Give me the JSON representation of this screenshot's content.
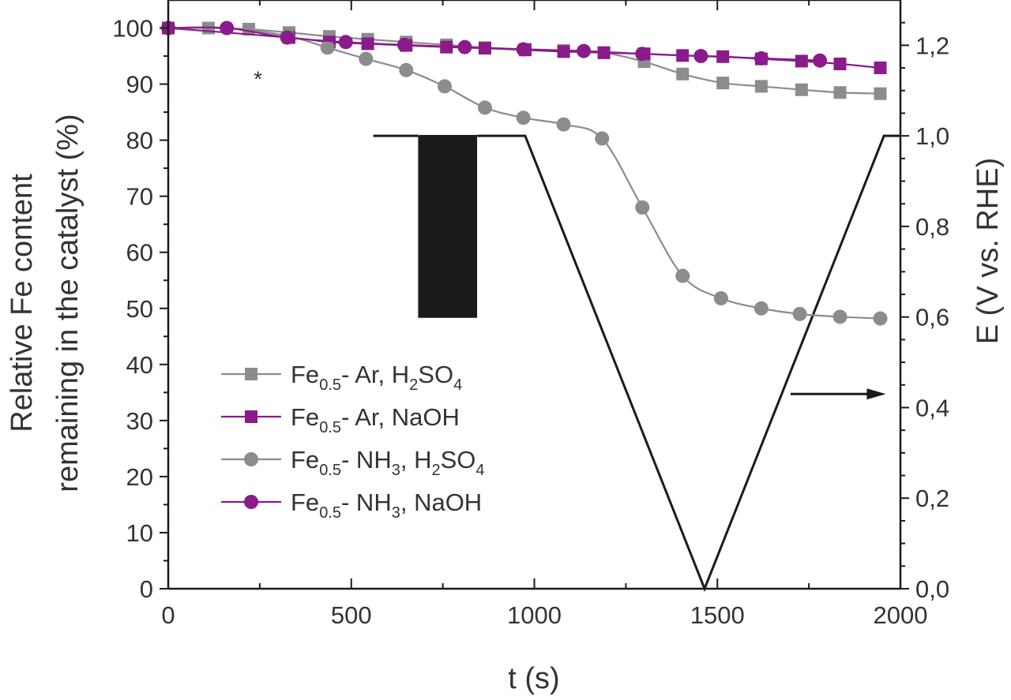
{
  "chart_data": {
    "type": "line",
    "xlabel": "t (s)",
    "ylabel_line1": "Relative Fe content",
    "ylabel_line2": "remaining in the catalyst (%)",
    "y2label": "E (V vs. RHE)",
    "xlim": [
      0,
      2000
    ],
    "ylim": [
      0,
      105
    ],
    "y2lim": [
      0,
      1.3
    ],
    "x_ticks": [
      0,
      500,
      1000,
      1500,
      2000
    ],
    "x_tick_labels": [
      "0",
      "500",
      "1000",
      "1500",
      "2000"
    ],
    "y_ticks": [
      0,
      10,
      20,
      30,
      40,
      50,
      60,
      70,
      80,
      90,
      100
    ],
    "y_tick_labels": [
      "0",
      "10",
      "20",
      "30",
      "40",
      "50",
      "60",
      "70",
      "80",
      "90",
      "100"
    ],
    "y2_ticks": [
      0,
      0.2,
      0.4,
      0.6,
      0.8,
      1.0,
      1.2
    ],
    "y2_tick_labels": [
      "0,0",
      "0,2",
      "0,4",
      "0,6",
      "0,8",
      "1,0",
      "1,2"
    ],
    "grid": false,
    "legend_position": "bottom-left",
    "series": [
      {
        "name": "Fe0.5 - Ar, H2SO4",
        "color": "#8c8c8c",
        "marker": "square",
        "legend_base": "Fe",
        "legend_sub": "0.5",
        "legend_parts": [
          {
            "t": "- Ar, H",
            "sub": false
          },
          {
            "t": "2",
            "sub": true
          },
          {
            "t": "SO",
            "sub": false
          },
          {
            "t": "4",
            "sub": true
          }
        ],
        "x": [
          0,
          110,
          220,
          330,
          440,
          545,
          650,
          760,
          865,
          975,
          1080,
          1190,
          1300,
          1405,
          1515,
          1620,
          1730,
          1835,
          1945
        ],
        "y": [
          100,
          100,
          99.8,
          99.2,
          98.5,
          98.0,
          97.5,
          97.0,
          96.5,
          96.2,
          96.0,
          95.6,
          94.0,
          91.8,
          90.2,
          89.6,
          89.0,
          88.5,
          88.3
        ]
      },
      {
        "name": "Fe0.5 - Ar, NaOH",
        "color": "#8b1a8b",
        "marker": "square",
        "legend_base": "Fe",
        "legend_sub": "0.5",
        "legend_parts": [
          {
            "t": "- Ar, NaOH",
            "sub": false
          }
        ],
        "x": [
          0,
          330,
          440,
          545,
          650,
          760,
          865,
          975,
          1080,
          1190,
          1300,
          1405,
          1515,
          1620,
          1730,
          1835,
          1945
        ],
        "y": [
          100,
          98.3,
          97.5,
          97.2,
          96.9,
          96.6,
          96.4,
          96.1,
          95.8,
          95.6,
          95.4,
          95.1,
          94.9,
          94.5,
          94.1,
          93.6,
          92.9
        ]
      },
      {
        "name": "Fe0.5 - NH3, H2SO4",
        "color": "#8c8c8c",
        "marker": "circle",
        "legend_base": "Fe",
        "legend_sub": "0.5",
        "legend_parts": [
          {
            "t": "- NH",
            "sub": false
          },
          {
            "t": "3",
            "sub": true
          },
          {
            "t": ", H",
            "sub": false
          },
          {
            "t": "2",
            "sub": true
          },
          {
            "t": "SO",
            "sub": false
          },
          {
            "t": "4",
            "sub": true
          }
        ],
        "x": [
          0,
          160,
          325,
          435,
          540,
          650,
          755,
          865,
          970,
          1080,
          1185,
          1295,
          1405,
          1510,
          1620,
          1725,
          1835,
          1945
        ],
        "y": [
          100,
          100,
          98.6,
          96.5,
          94.5,
          92.5,
          89.6,
          85.8,
          84.0,
          82.8,
          80.3,
          68.0,
          55.8,
          51.8,
          50.0,
          49.0,
          48.5,
          48.2
        ]
      },
      {
        "name": "Fe0.5 - NH3, NaOH",
        "color": "#8b1a8b",
        "marker": "circle",
        "legend_base": "Fe",
        "legend_sub": "0.5",
        "legend_parts": [
          {
            "t": "- NH",
            "sub": false
          },
          {
            "t": "3",
            "sub": true
          },
          {
            "t": ", NaOH",
            "sub": false
          }
        ],
        "x": [
          0,
          160,
          325,
          485,
          645,
          810,
          970,
          1135,
          1295,
          1455,
          1620,
          1780
        ],
        "y": [
          100,
          100,
          98.3,
          97.5,
          97.0,
          96.6,
          96.2,
          95.9,
          95.4,
          95.0,
          94.6,
          94.2
        ]
      }
    ],
    "potential_profile": {
      "name": "Applied potential E (V vs. RHE)",
      "axis": "right",
      "color": "#1a1a1a",
      "segments": [
        {
          "kind": "line",
          "x": [
            560,
            685
          ],
          "y": [
            1.0,
            1.0
          ]
        },
        {
          "kind": "square_wave",
          "x_range": [
            685,
            845
          ],
          "y_range": [
            0.6,
            1.0
          ],
          "cycles": 22
        },
        {
          "kind": "line",
          "x": [
            845,
            975,
            1465,
            1955,
            2000
          ],
          "y": [
            1.0,
            1.0,
            0.0,
            1.0,
            1.0
          ]
        }
      ]
    },
    "annotations": [
      {
        "text": "*",
        "x": 245,
        "y": 91
      },
      {
        "text": "→",
        "target": "right axis",
        "x_range": [
          1700,
          1960
        ],
        "y2": 0.43
      }
    ]
  }
}
